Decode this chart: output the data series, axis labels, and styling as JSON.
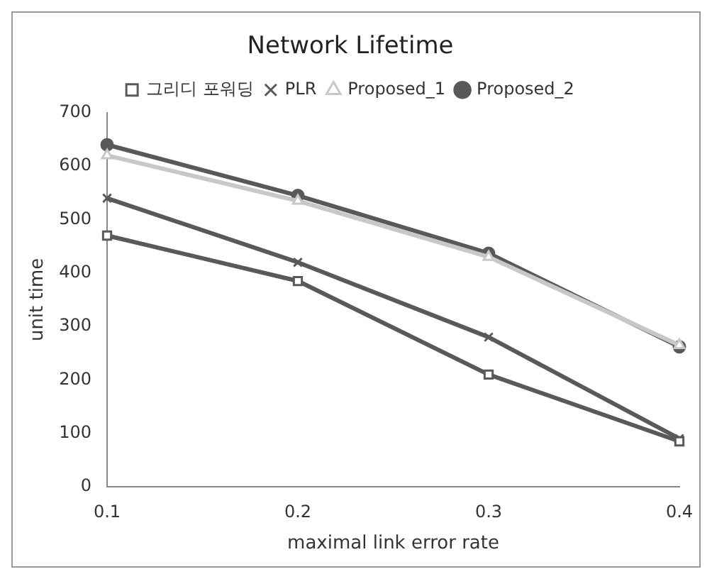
{
  "chart_data": {
    "type": "line",
    "title": "Network Lifetime",
    "xlabel": "maximal link error rate",
    "ylabel": "unit time",
    "categories": [
      "0.1",
      "0.2",
      "0.3",
      "0.4"
    ],
    "series": [
      {
        "name": "그리디 포워딩",
        "color": "#595959",
        "marker": "square",
        "values": [
          470,
          385,
          210,
          85
        ]
      },
      {
        "name": "PLR",
        "color": "#595959",
        "marker": "cross",
        "values": [
          540,
          420,
          280,
          90
        ]
      },
      {
        "name": "Proposed_1",
        "color": "#c8c8c8",
        "marker": "triangle",
        "values": [
          620,
          535,
          430,
          265
        ]
      },
      {
        "name": "Proposed_2",
        "color": "#595959",
        "marker": "circle",
        "values": [
          640,
          545,
          437,
          262
        ]
      }
    ],
    "ylim": [
      0,
      700
    ],
    "yticks": [
      0,
      100,
      200,
      300,
      400,
      500,
      600,
      700
    ],
    "grid": false,
    "legend": "top"
  }
}
